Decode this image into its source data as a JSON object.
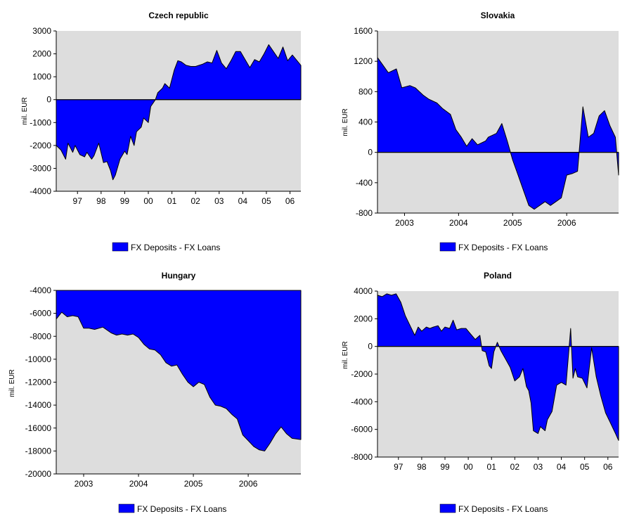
{
  "colors": {
    "series_fill": "#0000FF",
    "plot_background": "#DDDDDD",
    "axis": "#000000"
  },
  "chart_data": [
    {
      "type": "area",
      "title": "Czech republic",
      "ylabel": "mil. EUR",
      "xlabel": "",
      "ylim": [
        -4000,
        3000
      ],
      "yticks": [
        -4000,
        -3000,
        -2000,
        -1000,
        0,
        1000,
        2000,
        3000
      ],
      "xlim": [
        1996.6,
        2006.96
      ],
      "xticks": [
        {
          "x": 1997.5,
          "label": "97"
        },
        {
          "x": 1998.5,
          "label": "98"
        },
        {
          "x": 1999.5,
          "label": "99"
        },
        {
          "x": 2000.5,
          "label": "00"
        },
        {
          "x": 2001.5,
          "label": "01"
        },
        {
          "x": 2002.5,
          "label": "02"
        },
        {
          "x": 2003.5,
          "label": "03"
        },
        {
          "x": 2004.5,
          "label": "04"
        },
        {
          "x": 2005.5,
          "label": "05"
        },
        {
          "x": 2006.5,
          "label": "06"
        }
      ],
      "baseline": 0,
      "legend": "FX Deposits - FX Loans",
      "series": [
        {
          "name": "FX Deposits - FX Loans",
          "x": [
            1996.6,
            1996.8,
            1997.0,
            1997.1,
            1997.3,
            1997.4,
            1997.6,
            1997.8,
            1997.9,
            1998.1,
            1998.2,
            1998.4,
            1998.6,
            1998.75,
            1998.9,
            1999.0,
            1999.1,
            1999.3,
            1999.5,
            1999.6,
            1999.75,
            1999.9,
            2000.0,
            2000.2,
            2000.3,
            2000.5,
            2000.6,
            2000.8,
            2000.9,
            2001.1,
            2001.2,
            2001.4,
            2001.6,
            2001.75,
            2001.9,
            2002.1,
            2002.3,
            2002.5,
            2002.8,
            2003.0,
            2003.2,
            2003.4,
            2003.6,
            2003.8,
            2004.0,
            2004.2,
            2004.4,
            2004.6,
            2004.8,
            2005.0,
            2005.2,
            2005.4,
            2005.6,
            2005.8,
            2006.0,
            2006.2,
            2006.4,
            2006.6,
            2006.8,
            2006.96
          ],
          "y": [
            -2000,
            -2200,
            -2600,
            -1900,
            -2300,
            -2000,
            -2400,
            -2500,
            -2300,
            -2600,
            -2450,
            -1900,
            -2750,
            -2700,
            -3100,
            -3500,
            -3300,
            -2600,
            -2250,
            -2400,
            -1600,
            -2000,
            -1400,
            -1200,
            -800,
            -1000,
            -300,
            0,
            300,
            500,
            700,
            500,
            1300,
            1700,
            1650,
            1500,
            1450,
            1450,
            1550,
            1650,
            1600,
            2150,
            1600,
            1350,
            1700,
            2100,
            2100,
            1750,
            1400,
            1750,
            1650,
            2000,
            2400,
            2100,
            1800,
            2300,
            1700,
            1950,
            1700,
            1500
          ]
        }
      ]
    },
    {
      "type": "area",
      "title": "Slovakia",
      "ylabel": "mil. EUR",
      "xlabel": "",
      "ylim": [
        -800,
        1600
      ],
      "yticks": [
        -800,
        -400,
        0,
        400,
        800,
        1200,
        1600
      ],
      "xlim": [
        2002.5,
        2006.96
      ],
      "xticks": [
        {
          "x": 2003.0,
          "label": "2003"
        },
        {
          "x": 2004.0,
          "label": "2004"
        },
        {
          "x": 2005.0,
          "label": "2005"
        },
        {
          "x": 2006.0,
          "label": "2006"
        }
      ],
      "baseline": 0,
      "legend": "FX Deposits - FX Loans",
      "series": [
        {
          "name": "FX Deposits - FX Loans",
          "x": [
            2002.5,
            2002.6,
            2002.7,
            2002.85,
            2002.95,
            2003.1,
            2003.2,
            2003.35,
            2003.45,
            2003.6,
            2003.7,
            2003.85,
            2003.95,
            2004.05,
            2004.15,
            2004.25,
            2004.35,
            2004.5,
            2004.55,
            2004.7,
            2004.8,
            2004.9,
            2005.0,
            2005.1,
            2005.2,
            2005.3,
            2005.4,
            2005.5,
            2005.6,
            2005.7,
            2005.8,
            2005.9,
            2006.0,
            2006.1,
            2006.2,
            2006.3,
            2006.4,
            2006.5,
            2006.6,
            2006.7,
            2006.8,
            2006.9,
            2006.96
          ],
          "y": [
            1250,
            1150,
            1050,
            1100,
            850,
            880,
            850,
            750,
            700,
            650,
            580,
            500,
            300,
            200,
            80,
            180,
            100,
            150,
            200,
            250,
            380,
            150,
            -100,
            -300,
            -500,
            -700,
            -750,
            -700,
            -650,
            -700,
            -650,
            -600,
            -300,
            -280,
            -250,
            600,
            200,
            250,
            480,
            550,
            350,
            200,
            -300
          ]
        }
      ]
    },
    {
      "type": "area",
      "title": "Hungary",
      "ylabel": "mil. EUR",
      "xlabel": "",
      "ylim": [
        -20000,
        -4000
      ],
      "yticks": [
        -20000,
        -18000,
        -16000,
        -14000,
        -12000,
        -10000,
        -8000,
        -6000,
        -4000
      ],
      "xlim": [
        2002.5,
        2006.96
      ],
      "xticks": [
        {
          "x": 2003.0,
          "label": "2003"
        },
        {
          "x": 2004.0,
          "label": "2004"
        },
        {
          "x": 2005.0,
          "label": "2005"
        },
        {
          "x": 2006.0,
          "label": "2006"
        }
      ],
      "baseline": -4000,
      "legend": "FX Deposits - FX Loans",
      "series": [
        {
          "name": "FX Deposits - FX Loans",
          "x": [
            2002.5,
            2002.6,
            2002.7,
            2002.8,
            2002.9,
            2003.0,
            2003.1,
            2003.2,
            2003.35,
            2003.5,
            2003.6,
            2003.7,
            2003.8,
            2003.9,
            2004.0,
            2004.1,
            2004.2,
            2004.3,
            2004.4,
            2004.5,
            2004.6,
            2004.7,
            2004.8,
            2004.9,
            2005.0,
            2005.1,
            2005.2,
            2005.3,
            2005.4,
            2005.5,
            2005.6,
            2005.7,
            2005.8,
            2005.9,
            2006.0,
            2006.1,
            2006.2,
            2006.3,
            2006.4,
            2006.5,
            2006.6,
            2006.7,
            2006.8,
            2006.96
          ],
          "y": [
            -6500,
            -5900,
            -6300,
            -6200,
            -6300,
            -7300,
            -7300,
            -7400,
            -7200,
            -7700,
            -7900,
            -7800,
            -7900,
            -7800,
            -8100,
            -8700,
            -9100,
            -9200,
            -9600,
            -10300,
            -10600,
            -10500,
            -11300,
            -12000,
            -12400,
            -12000,
            -12200,
            -13300,
            -14000,
            -14100,
            -14300,
            -14800,
            -15200,
            -16600,
            -17100,
            -17600,
            -17900,
            -18000,
            -17300,
            -16500,
            -15900,
            -16500,
            -16900,
            -17000
          ]
        }
      ]
    },
    {
      "type": "area",
      "title": "Poland",
      "ylabel": "mil. EUR",
      "xlabel": "",
      "ylim": [
        -8000,
        4000
      ],
      "yticks": [
        -8000,
        -6000,
        -4000,
        -2000,
        0,
        2000,
        4000
      ],
      "xlim": [
        1996.6,
        2006.96
      ],
      "xticks": [
        {
          "x": 1997.5,
          "label": "97"
        },
        {
          "x": 1998.5,
          "label": "98"
        },
        {
          "x": 1999.5,
          "label": "99"
        },
        {
          "x": 2000.5,
          "label": "00"
        },
        {
          "x": 2001.5,
          "label": "01"
        },
        {
          "x": 2002.5,
          "label": "02"
        },
        {
          "x": 2003.5,
          "label": "03"
        },
        {
          "x": 2004.5,
          "label": "04"
        },
        {
          "x": 2005.5,
          "label": "05"
        },
        {
          "x": 2006.5,
          "label": "06"
        }
      ],
      "baseline": 0,
      "legend": "FX Deposits - FX Loans",
      "series": [
        {
          "name": "FX Deposits - FX Loans",
          "x": [
            1996.6,
            1996.8,
            1997.0,
            1997.2,
            1997.4,
            1997.6,
            1997.8,
            1998.0,
            1998.2,
            1998.35,
            1998.5,
            1998.7,
            1998.85,
            1999.0,
            1999.2,
            1999.35,
            1999.5,
            1999.7,
            1999.85,
            2000.0,
            2000.2,
            2000.4,
            2000.6,
            2000.8,
            2001.0,
            2001.1,
            2001.25,
            2001.4,
            2001.5,
            2001.6,
            2001.75,
            2001.9,
            2002.1,
            2002.3,
            2002.5,
            2002.7,
            2002.85,
            2003.0,
            2003.1,
            2003.2,
            2003.3,
            2003.5,
            2003.6,
            2003.8,
            2003.9,
            2004.1,
            2004.3,
            2004.5,
            2004.7,
            2004.9,
            2005.0,
            2005.1,
            2005.2,
            2005.4,
            2005.6,
            2005.8,
            2006.0,
            2006.2,
            2006.4,
            2006.6,
            2006.8,
            2006.96
          ],
          "y": [
            3700,
            3600,
            3800,
            3700,
            3800,
            3200,
            2200,
            1500,
            800,
            1400,
            1100,
            1400,
            1300,
            1400,
            1500,
            1100,
            1400,
            1300,
            1900,
            1200,
            1300,
            1300,
            900,
            500,
            800,
            -300,
            -400,
            -1400,
            -1600,
            -400,
            300,
            -300,
            -900,
            -1500,
            -2500,
            -2200,
            -1600,
            -2900,
            -3200,
            -4100,
            -6100,
            -6300,
            -5800,
            -6100,
            -5300,
            -4700,
            -2800,
            -2600,
            -2800,
            1300,
            -2300,
            -1600,
            -2200,
            -2300,
            -3000,
            -100,
            -2200,
            -3600,
            -4800,
            -5500,
            -6200,
            -6800
          ]
        }
      ]
    }
  ]
}
